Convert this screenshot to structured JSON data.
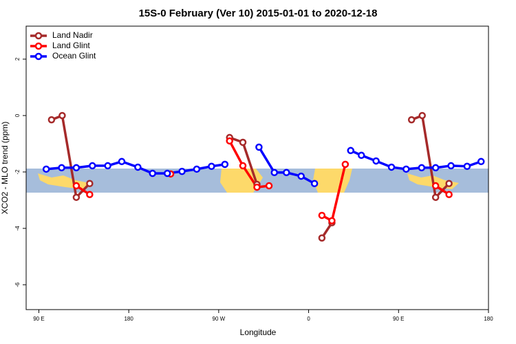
{
  "chart_data": {
    "type": "line",
    "title": "15S-0 February (Ver 10)   2015-01-01 to 2020-12-18",
    "x_label": "Longitude",
    "y_label": "XCO2 - MLO trend (ppm)",
    "xlim": [
      77.3,
      540
    ],
    "ylim": [
      -6.88,
      3.17
    ],
    "xticks": [
      {
        "value": 90,
        "label": "90 E"
      },
      180,
      {
        "value": 270,
        "label": "90 W"
      },
      {
        "value": 360,
        "label": "0"
      },
      {
        "value": 450,
        "label": "90 E"
      },
      {
        "value": 540,
        "label": "180"
      }
    ],
    "yticks": [
      2,
      0,
      -2,
      -4,
      -6
    ],
    "legend": "top-left",
    "series": [
      {
        "name": "Land Nadir",
        "color": "#a52a2a",
        "x": [
          102.7,
          113.4,
          127.5,
          140.9,
          null,
          280.9,
          294.2,
          308.3,
          null,
          373.3,
          383.3,
          null,
          463.0,
          473.7,
          487.1,
          500.5
        ],
        "values": [
          -0.15,
          0,
          -2.9,
          -2.41,
          null,
          -0.78,
          -0.95,
          -2.44,
          null,
          -4.34,
          -3.8,
          null,
          -0.15,
          0,
          -2.9,
          -2.41
        ]
      },
      {
        "name": "Land Glint",
        "color": "#ff0000",
        "x": [
          127.5,
          140.9,
          null,
          221.9,
          null,
          280.9,
          294.2,
          308.3,
          320.4,
          null,
          373.3,
          383.3,
          396.7,
          null,
          487.1,
          500.5
        ],
        "values": [
          -2.49,
          -2.8,
          null,
          -2.07,
          null,
          -0.9,
          -1.78,
          -2.54,
          -2.49,
          null,
          -3.54,
          -3.73,
          -1.73,
          null,
          -2.49,
          -2.8
        ]
      },
      {
        "name": "Ocean Glint",
        "color": "#0000ff",
        "x": [
          97.4,
          112.8,
          127.5,
          143.6,
          159.0,
          173.0,
          189.1,
          203.8,
          218.6,
          233.3,
          248.0,
          262.8,
          276.2,
          null,
          310.3,
          325.7,
          337.8,
          352.5,
          365.9,
          null,
          402.1,
          412.8,
          427.5,
          442.9,
          457.6,
          473.1,
          487.1,
          502.5,
          518.6,
          532.6
        ],
        "values": [
          -1.9,
          -1.85,
          -1.85,
          -1.78,
          -1.78,
          -1.63,
          -1.83,
          -2.05,
          -2.05,
          -1.98,
          -1.9,
          -1.8,
          -1.73,
          null,
          -1.12,
          -2.02,
          -2.02,
          -2.15,
          -2.41,
          null,
          -1.24,
          -1.41,
          -1.61,
          -1.83,
          -1.9,
          -1.85,
          -1.85,
          -1.78,
          -1.8,
          -1.63
        ]
      }
    ]
  }
}
